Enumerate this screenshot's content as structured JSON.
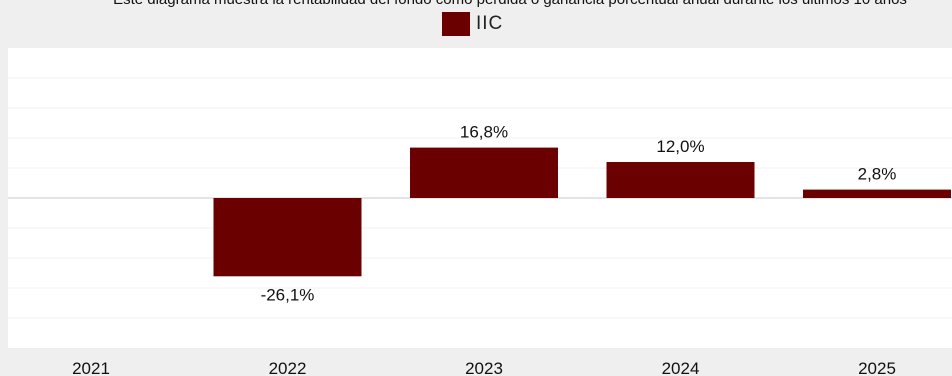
{
  "chart_data": {
    "type": "bar",
    "title": "Este diagrama muestra la rentabilidad del fondo como pérdida o ganancia porcentual anual durante los últimos 10 años",
    "categories": [
      "2021",
      "2022",
      "2023",
      "2024",
      "2025"
    ],
    "series": [
      {
        "name": "IIC",
        "values": [
          null,
          -26.1,
          16.8,
          12.0,
          2.8
        ],
        "labels": [
          "",
          "-26,1%",
          "16,8%",
          "12,0%",
          "2,8%"
        ],
        "color": "#6b0000"
      }
    ],
    "ylim": [
      -50,
      50
    ],
    "grid": true,
    "legend": "top-center"
  }
}
